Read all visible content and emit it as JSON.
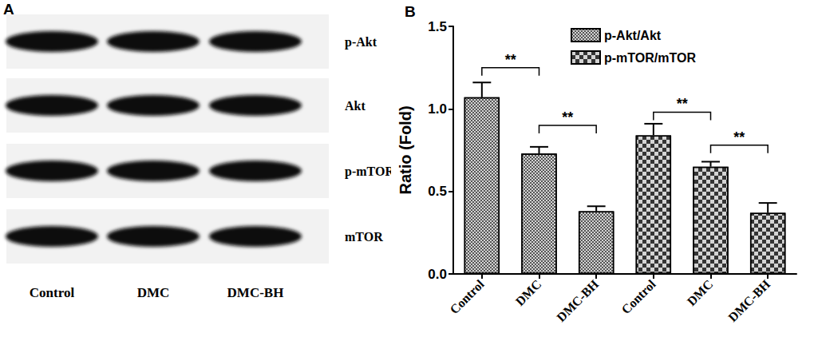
{
  "blot": {
    "title": "A",
    "proteins": [
      "p-Akt",
      "Akt",
      "p-mTOR",
      "mTOR"
    ],
    "lanes": [
      "Control",
      "DMC",
      "DMC-BH"
    ]
  },
  "chart_data": {
    "type": "bar",
    "title": "B",
    "y_label": "Ratio (Fold)",
    "categories": [
      "Control",
      "DMC",
      "DMC-BH",
      "Control",
      "DMC",
      "DMC-BH"
    ],
    "series": [
      {
        "name": "p-Akt/Akt",
        "color": "#d4d4d4",
        "marker": "fine_checker",
        "values": [
          1.07,
          0.73,
          0.38,
          null,
          null,
          null
        ],
        "errors": [
          0.09,
          0.04,
          0.03,
          null,
          null,
          null
        ]
      },
      {
        "name": "p-mTOR/mTOR",
        "color": "#d4d4d4",
        "marker": "coarse_checker",
        "values": [
          null,
          null,
          null,
          0.84,
          0.65,
          0.37
        ],
        "errors": [
          null,
          null,
          null,
          0.07,
          0.03,
          0.06
        ]
      }
    ],
    "ylim": [
      0,
      1.5
    ],
    "yticks": [
      {
        "value": 0,
        "label": "0.0"
      },
      {
        "value": 0.5,
        "label": "0.5"
      },
      {
        "value": 1,
        "label": "1.0"
      },
      {
        "value": 1.5,
        "label": "1.5"
      }
    ],
    "legend": "top",
    "annotations": [
      {
        "x": [
          0,
          1
        ],
        "y": 1.25,
        "text": "**"
      },
      {
        "x": [
          1,
          2
        ],
        "y": 0.9,
        "text": "**"
      },
      {
        "x": [
          3,
          4
        ],
        "y": 0.98,
        "text": "**"
      },
      {
        "x": [
          4,
          5
        ],
        "y": 0.78,
        "text": "**"
      }
    ]
  }
}
